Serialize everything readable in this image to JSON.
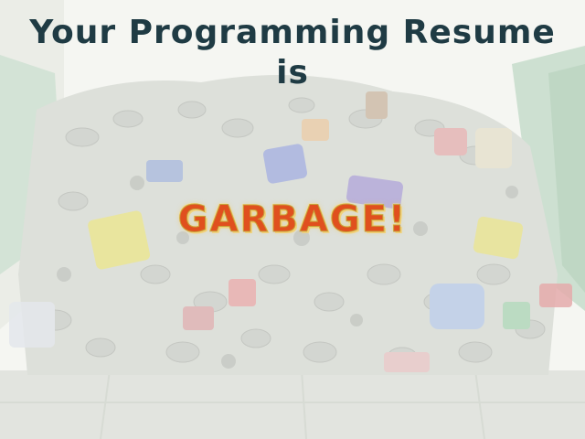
{
  "slide": {
    "title_line1": "Your Programming Resume",
    "title_line2": "is",
    "punchline": "GARBAGE!"
  },
  "background": {
    "subject": "pile of crushed tin cans in a recycling bin",
    "colors": {
      "title": "#1f3b44",
      "punchline": "#e0501e",
      "punchline_outline": "#c8a13a",
      "bin_green": "#b9d3bd"
    }
  }
}
